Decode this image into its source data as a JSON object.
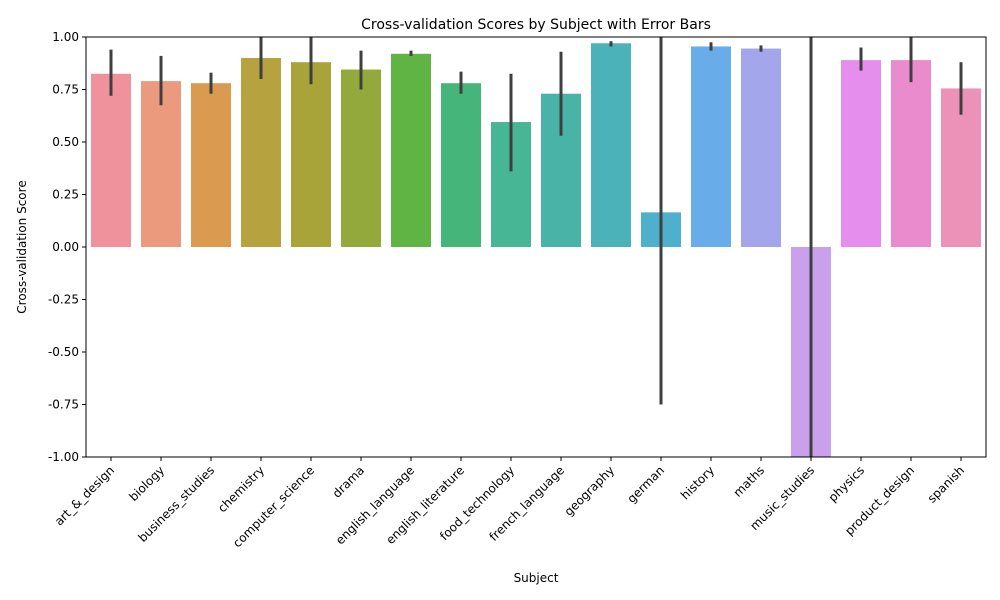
{
  "chart_data": {
    "type": "bar",
    "title": "Cross-validation Scores by Subject with Error Bars",
    "xlabel": "Subject",
    "ylabel": "Cross-validation Score",
    "ylim": [
      -1.0,
      1.0
    ],
    "yticks": [
      "-1.00",
      "-0.75",
      "-0.50",
      "-0.25",
      "0.00",
      "0.25",
      "0.50",
      "0.75",
      "1.00"
    ],
    "grid": false,
    "legend": "none",
    "error_bar_color": "#3f3f3f",
    "categories": [
      "art_&_design",
      "biology",
      "business_studies",
      "chemistry",
      "computer_science",
      "drama",
      "english_language",
      "english_literature",
      "food_technology",
      "french_language",
      "geography",
      "german",
      "history",
      "maths",
      "music_studies",
      "physics",
      "product_design",
      "spanish"
    ],
    "values": [
      0.825,
      0.79,
      0.78,
      0.9,
      0.88,
      0.845,
      0.92,
      0.78,
      0.595,
      0.73,
      0.97,
      0.165,
      0.955,
      0.945,
      -1.0,
      0.89,
      0.89,
      0.755
    ],
    "error_low": [
      0.72,
      0.675,
      0.73,
      0.8,
      0.775,
      0.75,
      0.91,
      0.73,
      0.36,
      0.53,
      0.955,
      -0.75,
      0.935,
      0.93,
      -1.0,
      0.84,
      0.785,
      0.63
    ],
    "error_high": [
      0.94,
      0.91,
      0.83,
      1.0,
      1.0,
      0.935,
      0.935,
      0.835,
      0.825,
      0.93,
      0.98,
      1.0,
      0.975,
      0.96,
      1.0,
      0.95,
      1.0,
      0.88
    ],
    "colors": [
      "#f0929c",
      "#ec9a7d",
      "#da9a50",
      "#b6a23f",
      "#a8a43a",
      "#93a93c",
      "#5fb444",
      "#45b57a",
      "#47b695",
      "#48b3a6",
      "#4ab2b8",
      "#4eb0cc",
      "#68acea",
      "#a4a6ec",
      "#c9a0ec",
      "#e58eee",
      "#ea8bcd",
      "#ec92b8"
    ]
  }
}
